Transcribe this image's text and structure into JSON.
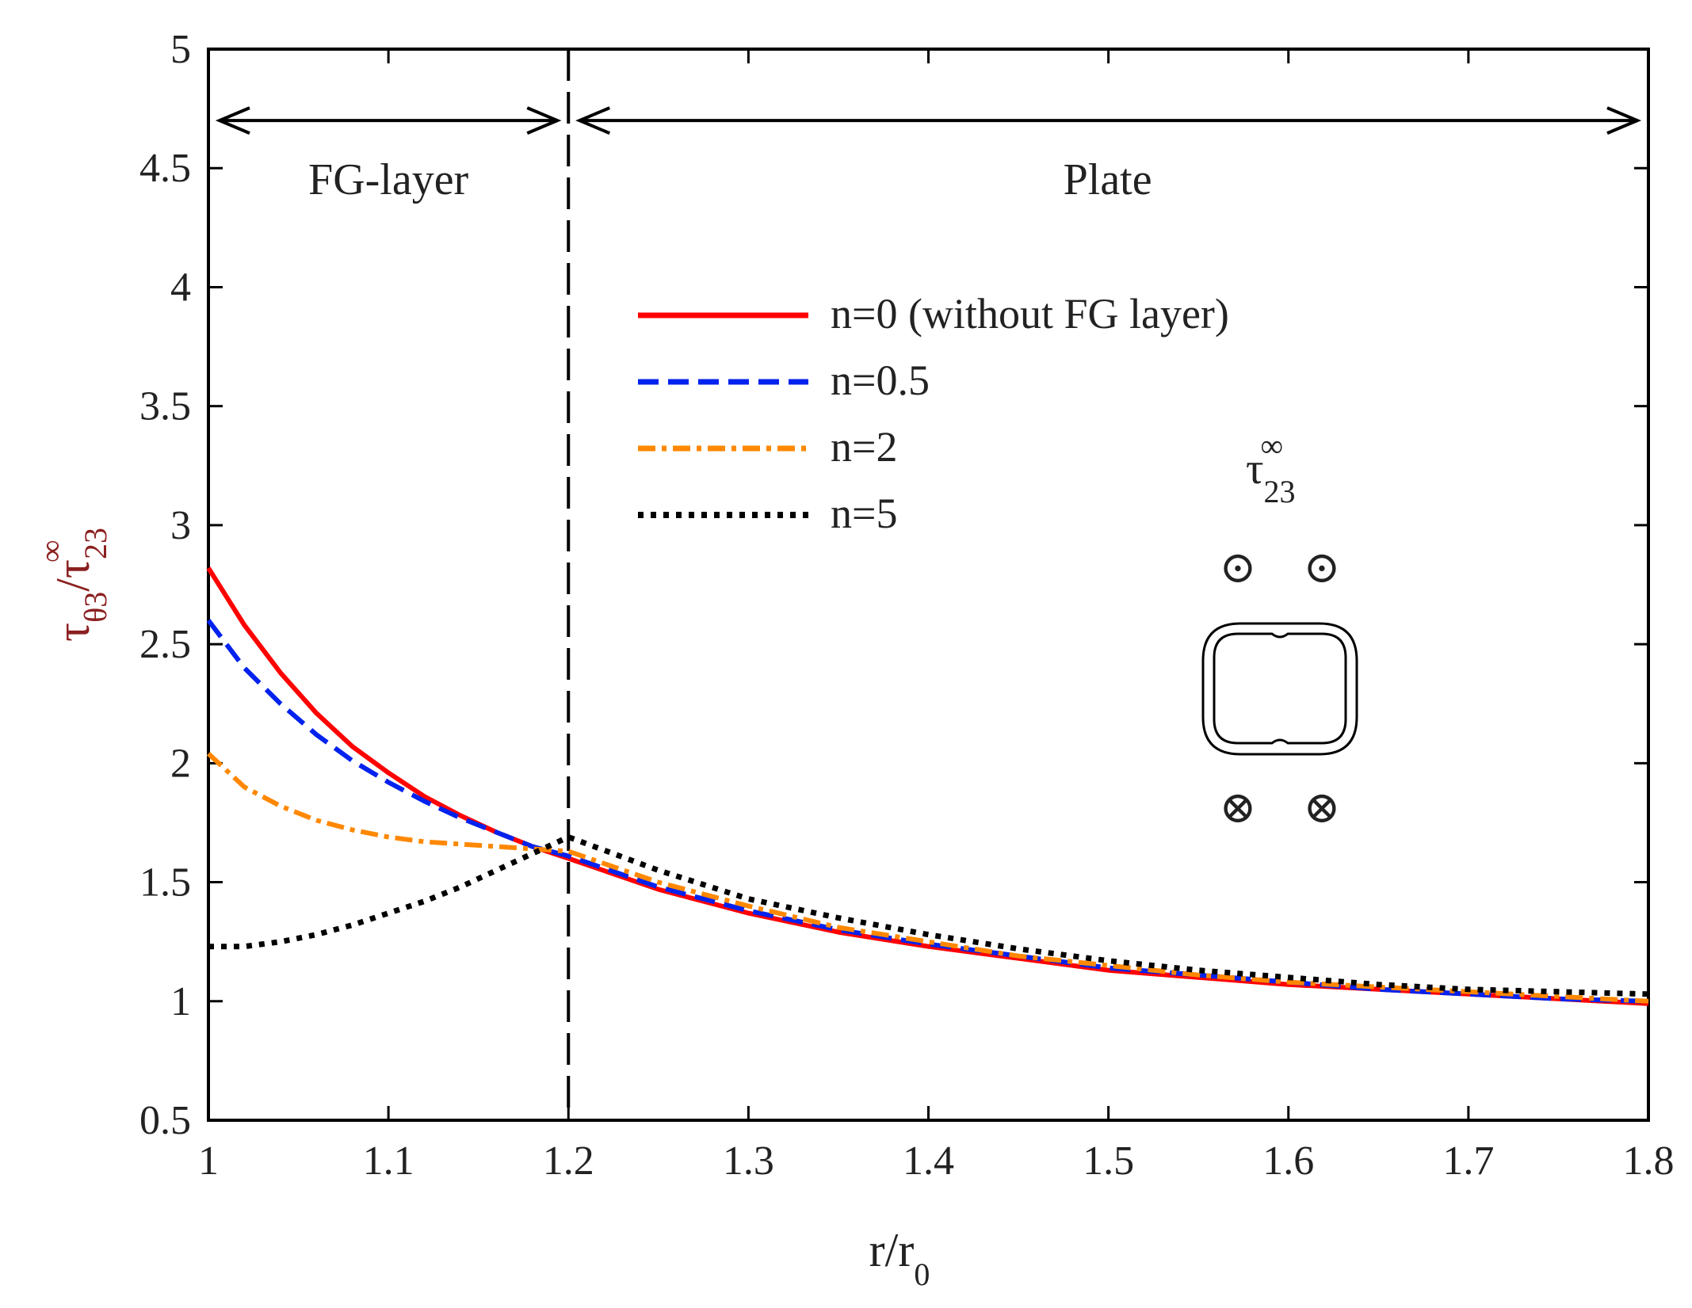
{
  "chart_data": {
    "type": "line",
    "title": "",
    "xlabel": "r/r0",
    "xlabel_main": "r/r",
    "xlabel_sub": "0",
    "ylabel": "τθ3/τ23∞",
    "ylabel_parts": {
      "tau1": "τ",
      "sub1": "θ3",
      "slash": "/",
      "tau2": "τ",
      "sub2": "23",
      "sup2": "∞"
    },
    "xlim": [
      1.0,
      1.8
    ],
    "ylim": [
      0.5,
      5.0
    ],
    "x_ticks": [
      "1",
      "1.1",
      "1.2",
      "1.3",
      "1.4",
      "1.5",
      "1.6",
      "1.7",
      "1.8"
    ],
    "y_ticks": [
      "0.5",
      "1",
      "1.5",
      "2",
      "2.5",
      "3",
      "3.5",
      "4",
      "4.5",
      "5"
    ],
    "x_tick_values": [
      1.0,
      1.1,
      1.2,
      1.3,
      1.4,
      1.5,
      1.6,
      1.7,
      1.8
    ],
    "y_tick_values": [
      0.5,
      1.0,
      1.5,
      2.0,
      2.5,
      3.0,
      3.5,
      4.0,
      4.5,
      5.0
    ],
    "boundary_x": 1.2,
    "regions": [
      {
        "label": "FG-layer",
        "from": 1.0,
        "to": 1.2
      },
      {
        "label": "Plate",
        "from": 1.2,
        "to": 1.8
      }
    ],
    "region_arrow_y": 4.7,
    "region_label_y": 4.45,
    "legend_position": "upper-center",
    "series": [
      {
        "name": "n=0 (without FG layer)",
        "color": "#ff0000",
        "style": "solid",
        "x": [
          1.0,
          1.02,
          1.04,
          1.06,
          1.08,
          1.1,
          1.12,
          1.14,
          1.16,
          1.18,
          1.2,
          1.25,
          1.3,
          1.35,
          1.4,
          1.45,
          1.5,
          1.55,
          1.6,
          1.65,
          1.7,
          1.75,
          1.8
        ],
        "y": [
          2.82,
          2.58,
          2.38,
          2.21,
          2.07,
          1.96,
          1.86,
          1.78,
          1.71,
          1.65,
          1.6,
          1.47,
          1.37,
          1.29,
          1.23,
          1.18,
          1.13,
          1.1,
          1.07,
          1.05,
          1.03,
          1.01,
          0.99
        ]
      },
      {
        "name": "n=0.5",
        "color": "#0022ee",
        "style": "dashed",
        "x": [
          1.0,
          1.02,
          1.04,
          1.06,
          1.08,
          1.1,
          1.12,
          1.14,
          1.16,
          1.18,
          1.2,
          1.25,
          1.3,
          1.35,
          1.4,
          1.45,
          1.5,
          1.55,
          1.6,
          1.65,
          1.7,
          1.75,
          1.8
        ],
        "y": [
          2.6,
          2.4,
          2.25,
          2.12,
          2.01,
          1.92,
          1.84,
          1.77,
          1.71,
          1.65,
          1.61,
          1.48,
          1.38,
          1.3,
          1.24,
          1.19,
          1.14,
          1.11,
          1.08,
          1.05,
          1.03,
          1.01,
          1.0
        ]
      },
      {
        "name": "n=2",
        "color": "#ff8800",
        "style": "dashdot",
        "x": [
          1.0,
          1.02,
          1.04,
          1.06,
          1.08,
          1.1,
          1.12,
          1.14,
          1.16,
          1.18,
          1.2,
          1.25,
          1.3,
          1.35,
          1.4,
          1.45,
          1.5,
          1.55,
          1.6,
          1.65,
          1.7,
          1.75,
          1.8
        ],
        "y": [
          2.04,
          1.9,
          1.82,
          1.76,
          1.72,
          1.69,
          1.67,
          1.66,
          1.65,
          1.64,
          1.63,
          1.5,
          1.4,
          1.31,
          1.25,
          1.19,
          1.15,
          1.11,
          1.08,
          1.06,
          1.04,
          1.02,
          1.0
        ]
      },
      {
        "name": "n=5",
        "color": "#000000",
        "style": "dotted",
        "x": [
          1.0,
          1.02,
          1.04,
          1.06,
          1.08,
          1.1,
          1.12,
          1.14,
          1.16,
          1.18,
          1.2,
          1.25,
          1.3,
          1.35,
          1.4,
          1.45,
          1.5,
          1.55,
          1.6,
          1.65,
          1.7,
          1.75,
          1.8
        ],
        "y": [
          1.23,
          1.23,
          1.25,
          1.28,
          1.32,
          1.37,
          1.42,
          1.48,
          1.55,
          1.62,
          1.69,
          1.55,
          1.43,
          1.35,
          1.28,
          1.22,
          1.17,
          1.13,
          1.1,
          1.07,
          1.05,
          1.04,
          1.03
        ]
      }
    ]
  },
  "inset": {
    "tau_label": "τ",
    "tau_sub": "23",
    "tau_sup": "∞",
    "out_of_page_symbol": "⊙",
    "into_page_symbol": "⊗"
  }
}
